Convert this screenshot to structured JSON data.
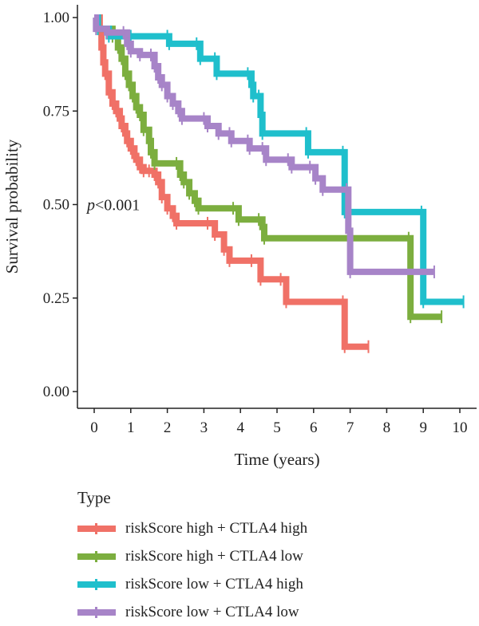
{
  "chart_data": {
    "type": "line",
    "subtype": "kaplan-meier step",
    "xlabel": "Time (years)",
    "ylabel": "Survival probability",
    "xlim": [
      0,
      10
    ],
    "ylim": [
      0,
      1
    ],
    "xticks": [
      "0",
      "1",
      "2",
      "3",
      "4",
      "5",
      "6",
      "7",
      "8",
      "9",
      "10"
    ],
    "yticks": [
      "0.00",
      "0.25",
      "0.50",
      "0.75",
      "1.00"
    ],
    "annotation": {
      "italic": "p",
      "rest": "<0.001",
      "x": 0,
      "y": 0.5
    },
    "grid": false,
    "legend": {
      "title": "Type",
      "placement": "bottom"
    },
    "series": [
      {
        "name": "riskScore high + CTLA4 high",
        "color": "#F07167",
        "points": [
          [
            0,
            1.0
          ],
          [
            0.15,
            0.97
          ],
          [
            0.2,
            0.92
          ],
          [
            0.25,
            0.88
          ],
          [
            0.3,
            0.85
          ],
          [
            0.4,
            0.8
          ],
          [
            0.5,
            0.77
          ],
          [
            0.6,
            0.75
          ],
          [
            0.7,
            0.73
          ],
          [
            0.75,
            0.71
          ],
          [
            0.85,
            0.69
          ],
          [
            0.9,
            0.67
          ],
          [
            1.0,
            0.65
          ],
          [
            1.1,
            0.63
          ],
          [
            1.15,
            0.62
          ],
          [
            1.25,
            0.6
          ],
          [
            1.35,
            0.59
          ],
          [
            1.5,
            0.59
          ],
          [
            1.65,
            0.58
          ],
          [
            1.75,
            0.56
          ],
          [
            1.85,
            0.52
          ],
          [
            2.0,
            0.49
          ],
          [
            2.15,
            0.47
          ],
          [
            2.25,
            0.45
          ],
          [
            3.1,
            0.45
          ],
          [
            3.3,
            0.42
          ],
          [
            3.55,
            0.38
          ],
          [
            3.7,
            0.35
          ],
          [
            4.3,
            0.35
          ],
          [
            4.55,
            0.3
          ],
          [
            5.1,
            0.3
          ],
          [
            5.25,
            0.24
          ],
          [
            6.8,
            0.24
          ],
          [
            6.85,
            0.12
          ],
          [
            7.5,
            0.12
          ]
        ]
      },
      {
        "name": "riskScore high + CTLA4 low",
        "color": "#7CAE3F",
        "points": [
          [
            0,
            1.0
          ],
          [
            0.1,
            0.97
          ],
          [
            0.5,
            0.95
          ],
          [
            0.65,
            0.92
          ],
          [
            0.75,
            0.89
          ],
          [
            0.85,
            0.85
          ],
          [
            0.95,
            0.82
          ],
          [
            1.05,
            0.79
          ],
          [
            1.15,
            0.76
          ],
          [
            1.25,
            0.74
          ],
          [
            1.35,
            0.7
          ],
          [
            1.5,
            0.67
          ],
          [
            1.55,
            0.64
          ],
          [
            1.65,
            0.61
          ],
          [
            2.25,
            0.61
          ],
          [
            2.35,
            0.58
          ],
          [
            2.45,
            0.56
          ],
          [
            2.6,
            0.53
          ],
          [
            2.75,
            0.51
          ],
          [
            2.85,
            0.49
          ],
          [
            3.8,
            0.49
          ],
          [
            3.95,
            0.46
          ],
          [
            4.5,
            0.46
          ],
          [
            4.6,
            0.44
          ],
          [
            4.65,
            0.41
          ],
          [
            8.6,
            0.41
          ],
          [
            8.65,
            0.2
          ],
          [
            9.5,
            0.2
          ]
        ]
      },
      {
        "name": "riskScore low + CTLA4 high",
        "color": "#1FBFCC",
        "points": [
          [
            0,
            1.0
          ],
          [
            0.1,
            0.97
          ],
          [
            0.4,
            0.95
          ],
          [
            1.0,
            0.95
          ],
          [
            2.0,
            0.95
          ],
          [
            2.05,
            0.93
          ],
          [
            2.8,
            0.93
          ],
          [
            2.9,
            0.89
          ],
          [
            3.3,
            0.89
          ],
          [
            3.35,
            0.85
          ],
          [
            4.2,
            0.85
          ],
          [
            4.3,
            0.82
          ],
          [
            4.35,
            0.79
          ],
          [
            4.5,
            0.79
          ],
          [
            4.55,
            0.74
          ],
          [
            4.6,
            0.69
          ],
          [
            5.8,
            0.69
          ],
          [
            5.85,
            0.64
          ],
          [
            6.8,
            0.64
          ],
          [
            6.85,
            0.48
          ],
          [
            8.95,
            0.48
          ],
          [
            9.0,
            0.24
          ],
          [
            10.1,
            0.24
          ]
        ]
      },
      {
        "name": "riskScore low + CTLA4 low",
        "color": "#A784C8",
        "points": [
          [
            0,
            1.0
          ],
          [
            0.05,
            0.97
          ],
          [
            0.35,
            0.96
          ],
          [
            0.8,
            0.96
          ],
          [
            0.9,
            0.93
          ],
          [
            1.0,
            0.91
          ],
          [
            1.25,
            0.9
          ],
          [
            1.55,
            0.9
          ],
          [
            1.65,
            0.87
          ],
          [
            1.75,
            0.84
          ],
          [
            1.85,
            0.82
          ],
          [
            2.0,
            0.79
          ],
          [
            2.15,
            0.77
          ],
          [
            2.3,
            0.75
          ],
          [
            2.4,
            0.73
          ],
          [
            3.0,
            0.73
          ],
          [
            3.1,
            0.71
          ],
          [
            3.4,
            0.69
          ],
          [
            3.7,
            0.69
          ],
          [
            3.75,
            0.67
          ],
          [
            4.2,
            0.67
          ],
          [
            4.25,
            0.65
          ],
          [
            4.6,
            0.65
          ],
          [
            4.7,
            0.62
          ],
          [
            5.3,
            0.62
          ],
          [
            5.4,
            0.6
          ],
          [
            5.9,
            0.6
          ],
          [
            6.05,
            0.57
          ],
          [
            6.25,
            0.54
          ],
          [
            6.9,
            0.54
          ],
          [
            6.95,
            0.43
          ],
          [
            7.0,
            0.32
          ],
          [
            9.3,
            0.32
          ]
        ]
      }
    ]
  }
}
